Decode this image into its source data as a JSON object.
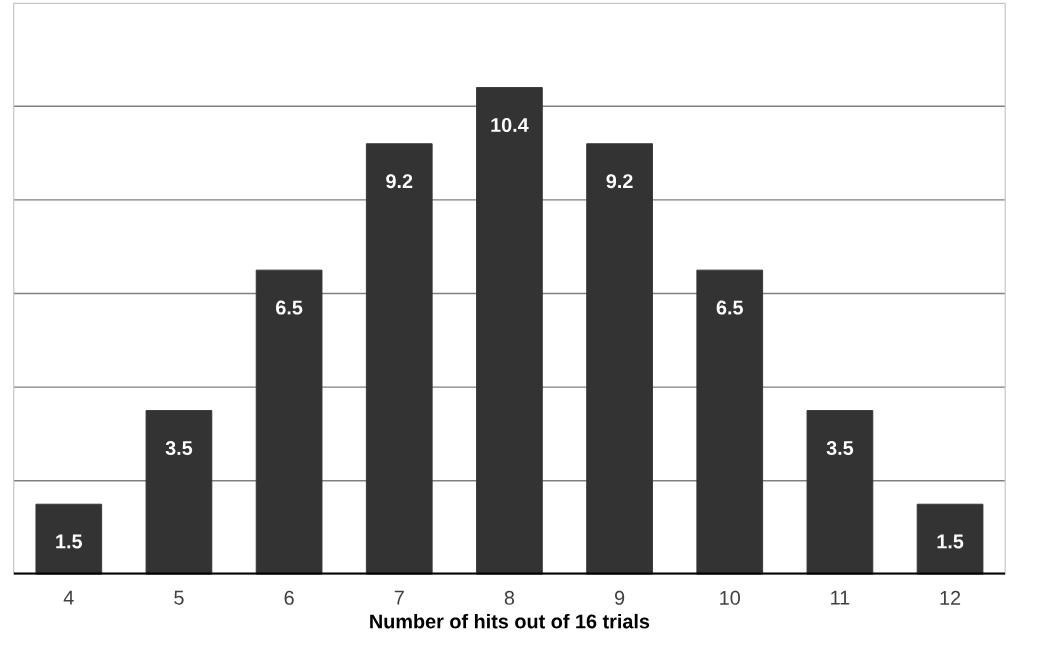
{
  "chart_data": {
    "type": "bar",
    "xlabel": "Number of hits out of 16 trials",
    "categories": [
      "4",
      "5",
      "6",
      "7",
      "8",
      "9",
      "10",
      "11",
      "12"
    ],
    "values": [
      1.5,
      3.5,
      6.5,
      9.2,
      10.4,
      9.2,
      6.5,
      3.5,
      1.5
    ],
    "color": "#333333",
    "data_labels": true,
    "ylim": [
      0,
      12.2
    ],
    "yticks": [
      {
        "value": 2,
        "label": null
      },
      {
        "value": 4,
        "label": null
      },
      {
        "value": 6,
        "label": null
      },
      {
        "value": 8,
        "label": null
      },
      {
        "value": 10,
        "label": null
      }
    ],
    "grid": "y",
    "tick_labels": "x"
  }
}
